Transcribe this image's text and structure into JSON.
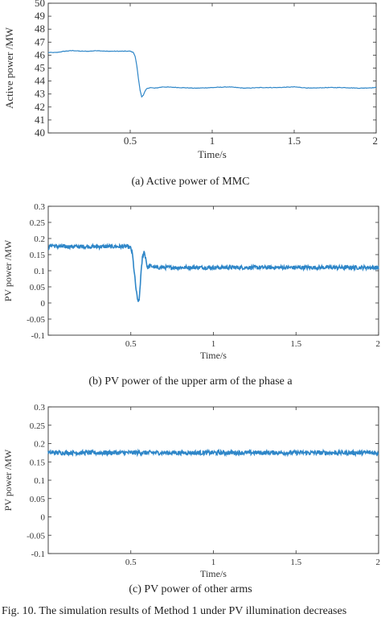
{
  "figure_caption": "Fig. 10. The simulation results of Method 1 under PV illumination decreases",
  "colors": {
    "line": "#2e86c8",
    "axis": "#333333",
    "box": "#444444"
  },
  "chart_data": [
    {
      "type": "line",
      "caption": "(a) Active power of  MMC",
      "xlabel": "Time/s",
      "ylabel": "Active power /MW",
      "xlim": [
        0,
        2
      ],
      "ylim": [
        40,
        50
      ],
      "xticks": [
        0.5,
        1,
        1.5,
        2
      ],
      "xtick_labels": [
        "0.5",
        "1",
        "1.5",
        "2"
      ],
      "yticks": [
        40,
        41,
        42,
        43,
        44,
        45,
        46,
        47,
        48,
        49,
        50
      ],
      "ytick_labels": [
        "40",
        "41",
        "42",
        "43",
        "44",
        "45",
        "46",
        "47",
        "48",
        "49",
        "50"
      ],
      "grid": false,
      "series": [
        {
          "x": [
            0,
            0.05,
            0.1,
            0.15,
            0.2,
            0.25,
            0.3,
            0.35,
            0.4,
            0.45,
            0.5,
            0.52,
            0.53,
            0.54,
            0.55,
            0.56,
            0.57,
            0.58,
            0.59,
            0.6,
            0.62,
            0.65,
            0.7,
            0.8,
            0.9,
            1.0,
            1.1,
            1.2,
            1.3,
            1.4,
            1.5,
            1.6,
            1.7,
            1.8,
            1.9,
            2.0
          ],
          "y": [
            46.2,
            46.2,
            46.3,
            46.35,
            46.3,
            46.3,
            46.35,
            46.3,
            46.3,
            46.3,
            46.3,
            46.2,
            45.9,
            45.2,
            44.2,
            43.3,
            42.8,
            42.9,
            43.2,
            43.4,
            43.5,
            43.45,
            43.55,
            43.5,
            43.45,
            43.5,
            43.55,
            43.45,
            43.5,
            43.5,
            43.55,
            43.45,
            43.5,
            43.5,
            43.45,
            43.5
          ]
        }
      ]
    },
    {
      "type": "line",
      "caption": "(b) PV power of the upper arm of the phase a",
      "xlabel": "Time/s",
      "ylabel": "PV power /MW",
      "xlim": [
        0,
        2
      ],
      "ylim": [
        -0.1,
        0.3
      ],
      "xticks": [
        0.5,
        1,
        1.5,
        2
      ],
      "xtick_labels": [
        "0.5",
        "1",
        "1.5",
        "2"
      ],
      "yticks": [
        -0.1,
        -0.05,
        0,
        0.05,
        0.1,
        0.15,
        0.2,
        0.25,
        0.3
      ],
      "ytick_labels": [
        "-0.1",
        "-0.05",
        "0",
        "0.05",
        "0.1",
        "0.15",
        "0.2",
        "0.25",
        "0.3"
      ],
      "grid": false,
      "series": [
        {
          "x": [
            0,
            0.02,
            0.05,
            0.1,
            0.2,
            0.3,
            0.4,
            0.48,
            0.5,
            0.51,
            0.52,
            0.53,
            0.54,
            0.55,
            0.56,
            0.57,
            0.58,
            0.59,
            0.6,
            0.62,
            0.65,
            0.7,
            0.8,
            0.9,
            1.0,
            1.2,
            1.4,
            1.6,
            1.8,
            2.0
          ],
          "y": [
            0.17,
            0.18,
            0.175,
            0.175,
            0.175,
            0.175,
            0.175,
            0.175,
            0.17,
            0.15,
            0.1,
            0.05,
            0.01,
            0.005,
            0.08,
            0.14,
            0.16,
            0.14,
            0.11,
            0.115,
            0.11,
            0.11,
            0.11,
            0.11,
            0.11,
            0.11,
            0.11,
            0.11,
            0.11,
            0.11
          ],
          "noise": 0.006
        }
      ]
    },
    {
      "type": "line",
      "caption": "(c) PV power of other arms",
      "xlabel": "Time/s",
      "ylabel": "PV power /MW",
      "xlim": [
        0,
        2
      ],
      "ylim": [
        -0.1,
        0.3
      ],
      "xticks": [
        0.5,
        1,
        1.5,
        2
      ],
      "xtick_labels": [
        "0.5",
        "1",
        "1.5",
        "2"
      ],
      "yticks": [
        -0.1,
        -0.05,
        0,
        0.05,
        0.1,
        0.15,
        0.2,
        0.25,
        0.3
      ],
      "ytick_labels": [
        "-0.1",
        "-0.05",
        "0",
        "0.05",
        "0.1",
        "0.15",
        "0.2",
        "0.25",
        "0.3"
      ],
      "grid": false,
      "series": [
        {
          "x": [
            0,
            0.5,
            1.0,
            1.5,
            2.0
          ],
          "y": [
            0.175,
            0.175,
            0.175,
            0.175,
            0.175
          ],
          "noise": 0.006
        }
      ]
    }
  ]
}
